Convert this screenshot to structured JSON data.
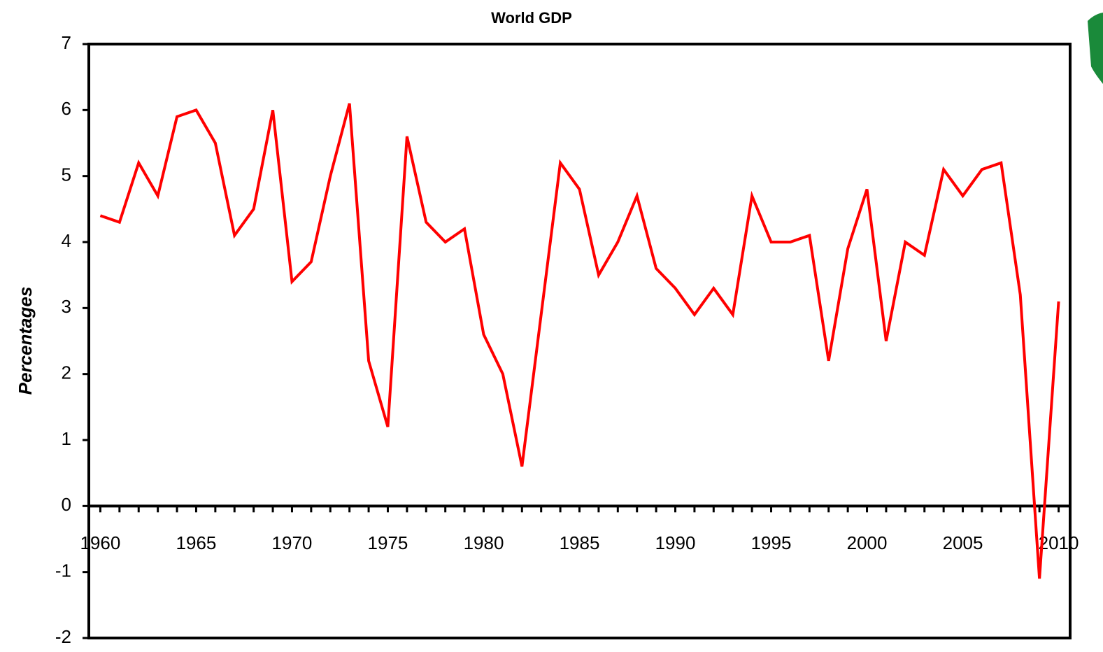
{
  "chart_data": {
    "type": "line",
    "title": "World GDP",
    "y_label": "Percentages",
    "x": [
      1960,
      1961,
      1962,
      1963,
      1964,
      1965,
      1966,
      1967,
      1968,
      1969,
      1970,
      1971,
      1972,
      1973,
      1974,
      1975,
      1976,
      1977,
      1978,
      1979,
      1980,
      1981,
      1982,
      1983,
      1984,
      1985,
      1986,
      1987,
      1988,
      1989,
      1990,
      1991,
      1992,
      1993,
      1994,
      1995,
      1996,
      1997,
      1998,
      1999,
      2000,
      2001,
      2002,
      2003,
      2004,
      2005,
      2006,
      2007,
      2008,
      2009,
      2010
    ],
    "series": [
      {
        "color": "#ff0000",
        "values": [
          4.4,
          4.3,
          5.2,
          4.7,
          5.9,
          6.0,
          5.5,
          4.1,
          4.5,
          6.0,
          3.4,
          3.7,
          5.0,
          6.1,
          2.2,
          1.2,
          5.6,
          4.3,
          4.0,
          4.2,
          2.6,
          2.0,
          0.6,
          2.9,
          5.2,
          4.8,
          3.5,
          4.0,
          4.7,
          3.6,
          3.3,
          2.9,
          3.3,
          2.9,
          4.7,
          4.0,
          4.0,
          4.1,
          2.2,
          3.9,
          4.8,
          2.5,
          4.0,
          3.8,
          5.1,
          4.7,
          5.1,
          5.2,
          3.2,
          -1.1,
          3.1
        ]
      }
    ],
    "xlim": [
      1959.4,
      2010.6
    ],
    "xticks": [
      1960,
      1965,
      1970,
      1975,
      1980,
      1985,
      1990,
      1995,
      2000,
      2005,
      2010
    ],
    "ylim": [
      -2,
      7
    ],
    "yticks": [
      -2,
      -1,
      0,
      1,
      2,
      3,
      4,
      5,
      6,
      7
    ]
  }
}
